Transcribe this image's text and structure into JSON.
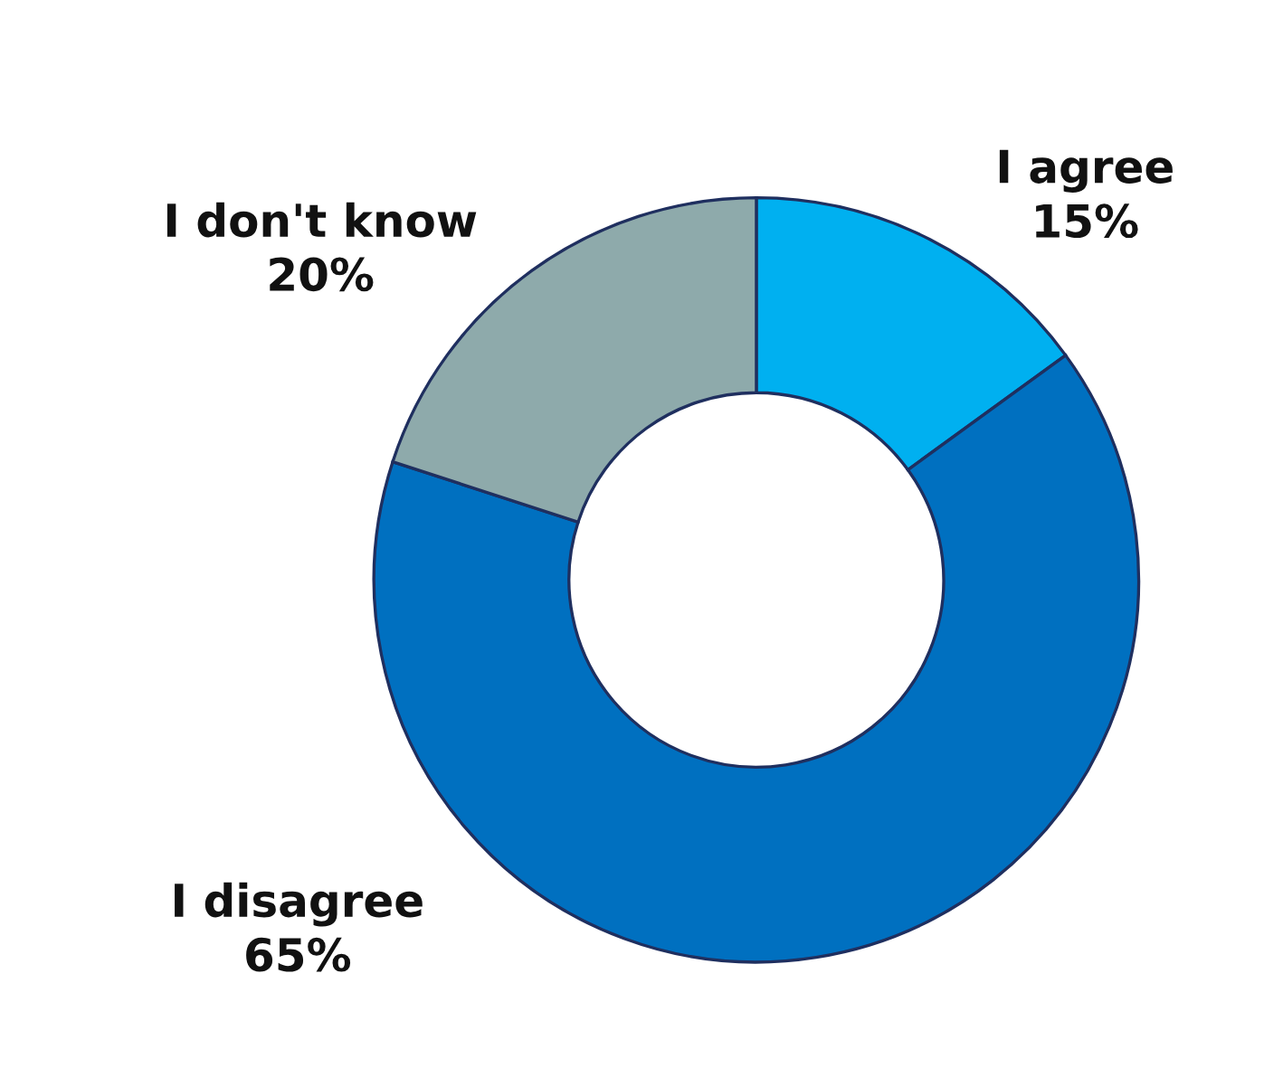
{
  "chart_data": {
    "type": "donut",
    "categories": [
      "I agree",
      "I disagree",
      "I don't know"
    ],
    "values": [
      15,
      65,
      20
    ],
    "value_labels": [
      "15%",
      "65%",
      "20%"
    ],
    "colors": [
      "#00b0f0",
      "#0070c0",
      "#8eaaab"
    ]
  }
}
